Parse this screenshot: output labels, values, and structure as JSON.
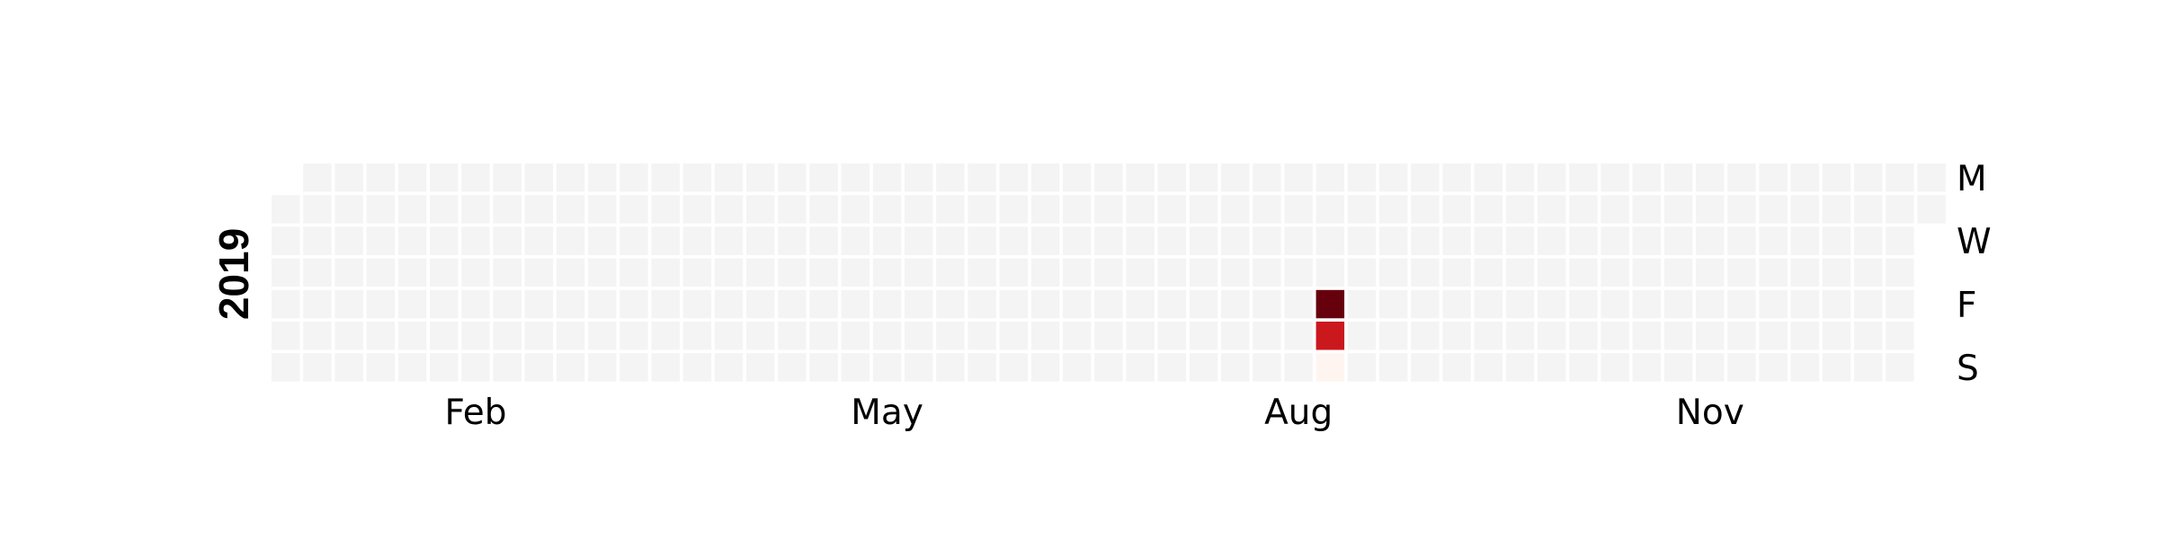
{
  "chart_data": {
    "type": "heatmap",
    "year": "2019",
    "x_tick_labels": [
      "Feb",
      "May",
      "Aug",
      "Nov"
    ],
    "y_tick_labels": [
      "M",
      "W",
      "F",
      "S"
    ],
    "grid": false,
    "legend": "none",
    "colors": {
      "empty": "#f4f4f4",
      "low": "#fff5f0",
      "mid": "#cb181d",
      "high": "#67000d"
    },
    "nonzero_days": [
      {
        "date": "2019-08-23",
        "level": "high"
      },
      {
        "date": "2019-08-24",
        "level": "mid"
      },
      {
        "date": "2019-08-25",
        "level": "low"
      }
    ]
  }
}
